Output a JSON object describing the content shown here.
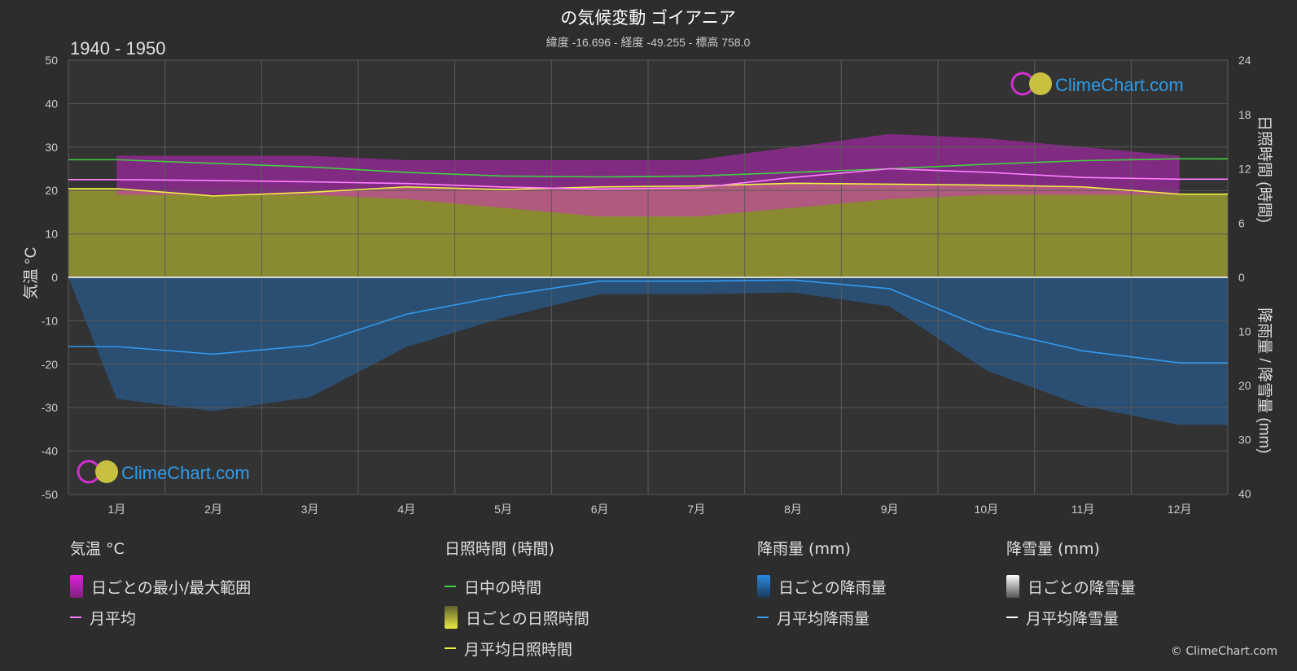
{
  "header": {
    "title": "の気候変動 ゴイアニア",
    "subtitle": "緯度 -16.696 - 経度 -49.255 - 標高 758.0",
    "period": "1940 - 1950"
  },
  "watermark": "ClimeChart.com",
  "copyright": "© ClimeChart.com",
  "colors": {
    "background": "#2d2d2d",
    "temp_range": "#e020e0",
    "temp_avg": "#ff80ff",
    "daylight": "#40d040",
    "sunshine_fill": "#a8a830",
    "sunshine_avg": "#f0f040",
    "rain": "#2070c0",
    "rain_avg": "#3399ee",
    "snow_avg": "#ffffff"
  },
  "chart_data": {
    "type": "line",
    "categories": [
      "1月",
      "2月",
      "3月",
      "4月",
      "5月",
      "6月",
      "7月",
      "8月",
      "9月",
      "10月",
      "11月",
      "12月"
    ],
    "axes": {
      "left_label": "気温 °C",
      "left_ticks": [
        "50",
        "40",
        "30",
        "20",
        "10",
        "0",
        "-10",
        "-20",
        "-30",
        "-40",
        "-50"
      ],
      "left_range": [
        -50,
        50
      ],
      "right_top_label": "日照時間 (時間)",
      "right_top_ticks": [
        "24",
        "18",
        "12",
        "6",
        "0"
      ],
      "right_top_range": [
        0,
        24
      ],
      "right_bottom_label": "降雨量 / 降雪量 (mm)",
      "right_bottom_ticks": [
        "10",
        "20",
        "30",
        "40"
      ],
      "right_bottom_range": [
        0,
        40
      ]
    },
    "series": [
      {
        "name": "日中の時間",
        "axis": "hours",
        "values": [
          13.0,
          12.6,
          12.2,
          11.6,
          11.2,
          11.1,
          11.2,
          11.6,
          12.0,
          12.5,
          12.9,
          13.1
        ]
      },
      {
        "name": "月平均日照時間",
        "axis": "hours",
        "values": [
          9.8,
          9.0,
          9.4,
          10.0,
          9.7,
          10.0,
          10.1,
          10.4,
          10.3,
          10.2,
          10.0,
          9.2
        ]
      },
      {
        "name": "月平均",
        "axis": "temp",
        "values": [
          22.5,
          22.3,
          22.0,
          21.6,
          20.8,
          20.3,
          20.6,
          23.0,
          25.0,
          24.2,
          23.0,
          22.6
        ]
      },
      {
        "name": "月平均降雨量",
        "axis": "rain",
        "values": [
          12.8,
          14.2,
          12.6,
          6.8,
          3.4,
          0.7,
          0.7,
          0.5,
          2.1,
          9.5,
          13.6,
          15.8
        ]
      }
    ],
    "temp_range_min": [
      19,
      19,
      19,
      18,
      16,
      14,
      14,
      16,
      18,
      19,
      19,
      19
    ],
    "temp_range_max": [
      28,
      28,
      28,
      27,
      27,
      27,
      27,
      30,
      33,
      32,
      30,
      28
    ]
  },
  "legend": {
    "temp": {
      "title": "気温 °C",
      "items": [
        "日ごとの最小/最大範囲",
        "月平均"
      ]
    },
    "sun": {
      "title": "日照時間 (時間)",
      "items": [
        "日中の時間",
        "日ごとの日照時間",
        "月平均日照時間"
      ]
    },
    "rain": {
      "title": "降雨量 (mm)",
      "items": [
        "日ごとの降雨量",
        "月平均降雨量"
      ]
    },
    "snow": {
      "title": "降雪量 (mm)",
      "items": [
        "日ごとの降雪量",
        "月平均降雪量"
      ]
    }
  }
}
